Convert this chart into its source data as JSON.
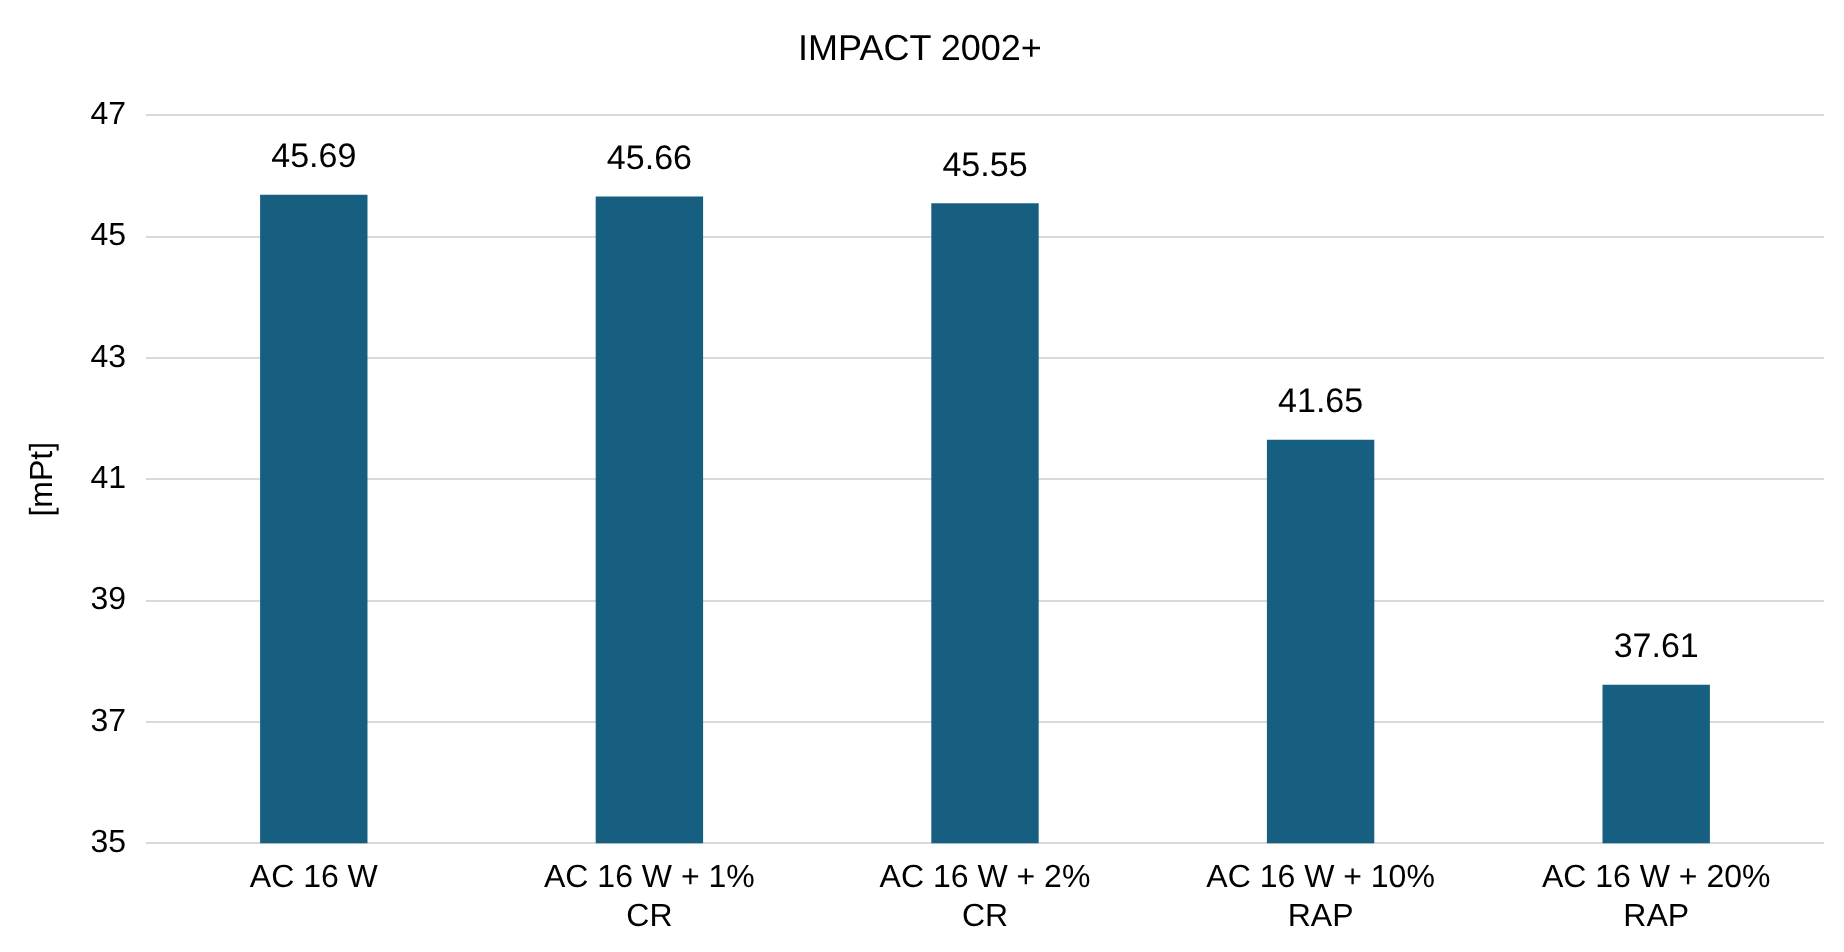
{
  "chart_data": {
    "type": "bar",
    "title": "IMPACT 2002+",
    "ylabel": "[mPt]",
    "categories": [
      "AC 16 W",
      "AC 16 W + 1% CR",
      "AC 16 W + 2% CR",
      "AC 16 W + 10% RAP",
      "AC 16 W + 20% RAP"
    ],
    "values": [
      45.69,
      45.66,
      45.55,
      41.65,
      37.61
    ],
    "color": "#175f80",
    "ylim": [
      35,
      47
    ],
    "yticks": [
      35,
      37,
      39,
      41,
      43,
      45,
      47
    ],
    "grid": "y",
    "data_labels": true,
    "legend": false
  }
}
